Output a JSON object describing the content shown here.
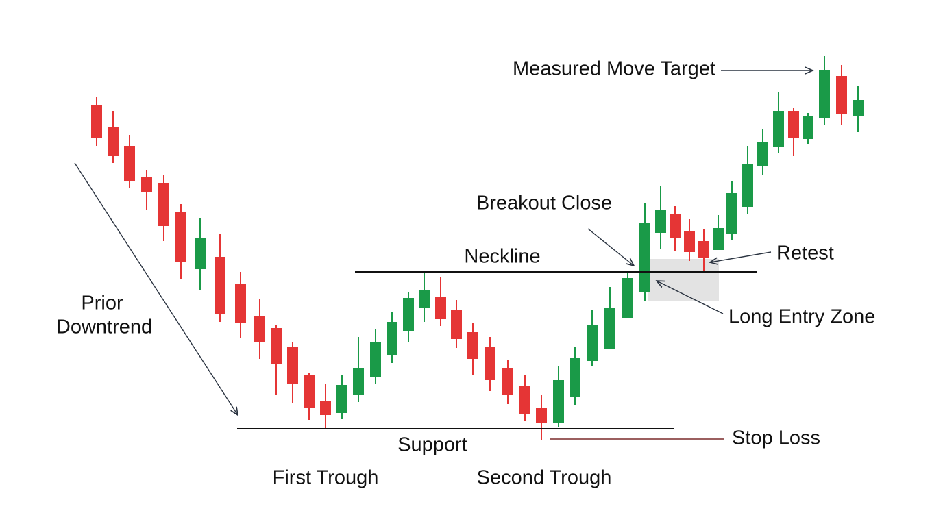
{
  "labels": {
    "prior_downtrend": [
      "Prior",
      "Downtrend"
    ],
    "neckline": "Neckline",
    "support": "Support",
    "first_trough": "First Trough",
    "second_trough": "Second Trough",
    "breakout_close": "Breakout Close",
    "retest": "Retest",
    "long_entry_zone": "Long Entry Zone",
    "stop_loss": "Stop Loss",
    "measured_move_target": "Measured Move Target"
  }
}
